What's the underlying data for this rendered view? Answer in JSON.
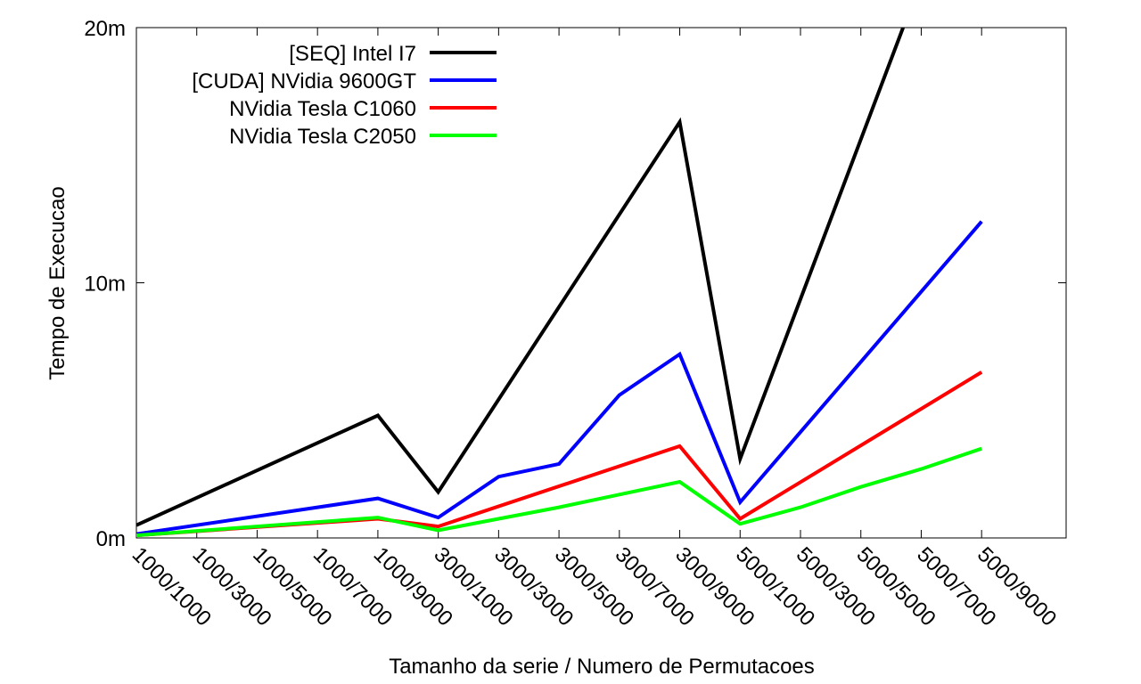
{
  "chart_data": {
    "type": "line",
    "title": "",
    "xlabel": "Tamanho da serie / Numero de Permutacoes",
    "ylabel": "Tempo de Execucao",
    "categories": [
      "1000/1000",
      "1000/3000",
      "1000/5000",
      "1000/7000",
      "1000/9000",
      "3000/1000",
      "3000/3000",
      "3000/5000",
      "3000/7000",
      "3000/9000",
      "5000/1000",
      "5000/3000",
      "5000/5000",
      "5000/7000",
      "5000/9000"
    ],
    "x_range": [
      0,
      15.4
    ],
    "ylim": [
      0,
      20
    ],
    "yticks": [
      {
        "value": 0,
        "label": "0m"
      },
      {
        "value": 10,
        "label": "10m"
      },
      {
        "value": 20,
        "label": "20m"
      }
    ],
    "grid": false,
    "legend_position": "top-left",
    "series": [
      {
        "name": "[SEQ] Intel I7",
        "color": "#000000",
        "x": [
          0,
          4,
          5,
          9,
          10,
          12.7
        ],
        "values": [
          0.5,
          4.8,
          1.8,
          16.3,
          3.1,
          20.0
        ]
      },
      {
        "name": "[CUDA] NVidia 9600GT",
        "color": "#0000ff",
        "x": [
          0,
          4,
          5,
          6,
          7,
          8,
          9,
          10,
          14
        ],
        "values": [
          0.15,
          1.55,
          0.8,
          2.4,
          2.9,
          5.6,
          7.2,
          1.4,
          12.4
        ]
      },
      {
        "name": "NVidia Tesla C1060",
        "color": "#ff0000",
        "x": [
          0,
          4,
          5,
          9,
          10,
          14
        ],
        "values": [
          0.1,
          0.75,
          0.45,
          3.6,
          0.75,
          6.5
        ]
      },
      {
        "name": "NVidia Tesla C2050",
        "color": "#00ff00",
        "x": [
          0,
          4,
          5,
          6,
          7,
          8,
          9,
          10,
          11,
          12,
          13,
          14
        ],
        "values": [
          0.1,
          0.8,
          0.3,
          0.75,
          1.2,
          1.7,
          2.2,
          0.55,
          1.2,
          2.0,
          2.7,
          3.5
        ]
      }
    ]
  }
}
